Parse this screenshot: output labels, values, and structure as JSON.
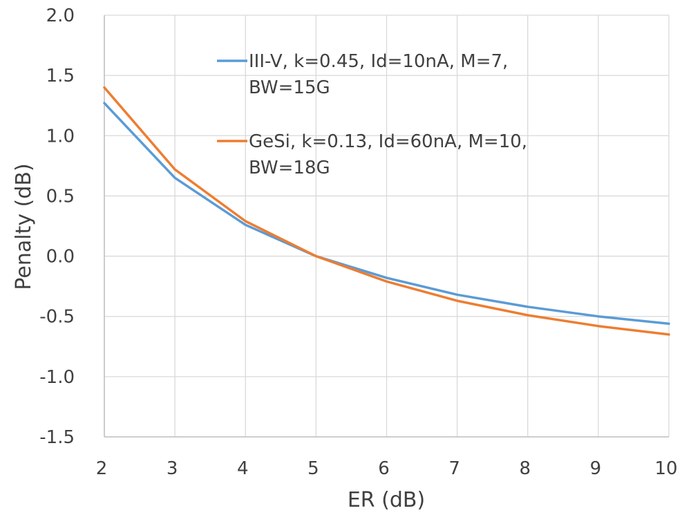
{
  "chart_data": {
    "type": "line",
    "title": "",
    "xlabel": "ER (dB)",
    "ylabel": "Penalty (dB)",
    "x": [
      2,
      3,
      4,
      5,
      6,
      7,
      8,
      9,
      10
    ],
    "xlim": [
      2,
      10
    ],
    "ylim": [
      -1.5,
      2.0
    ],
    "x_ticks": [
      "2",
      "3",
      "4",
      "5",
      "6",
      "7",
      "8",
      "9",
      "10"
    ],
    "y_ticks": [
      "2.0",
      "1.5",
      "1.0",
      "0.5",
      "0.0",
      "-0.5",
      "-1.0",
      "-1.5"
    ],
    "grid": true,
    "legend_position": "top-right",
    "series": [
      {
        "name_lines": [
          "III-V, k=0.45, Id=10nA, M=7,",
          "BW=15G"
        ],
        "color": "#5B9BD5",
        "values": [
          1.27,
          0.65,
          0.26,
          0.0,
          -0.18,
          -0.32,
          -0.42,
          -0.5,
          -0.56
        ]
      },
      {
        "name_lines": [
          "GeSi, k=0.13, Id=60nA, M=10,",
          "BW=18G"
        ],
        "color": "#ED7D31",
        "values": [
          1.4,
          0.72,
          0.29,
          0.0,
          -0.21,
          -0.37,
          -0.49,
          -0.58,
          -0.65
        ]
      }
    ]
  }
}
